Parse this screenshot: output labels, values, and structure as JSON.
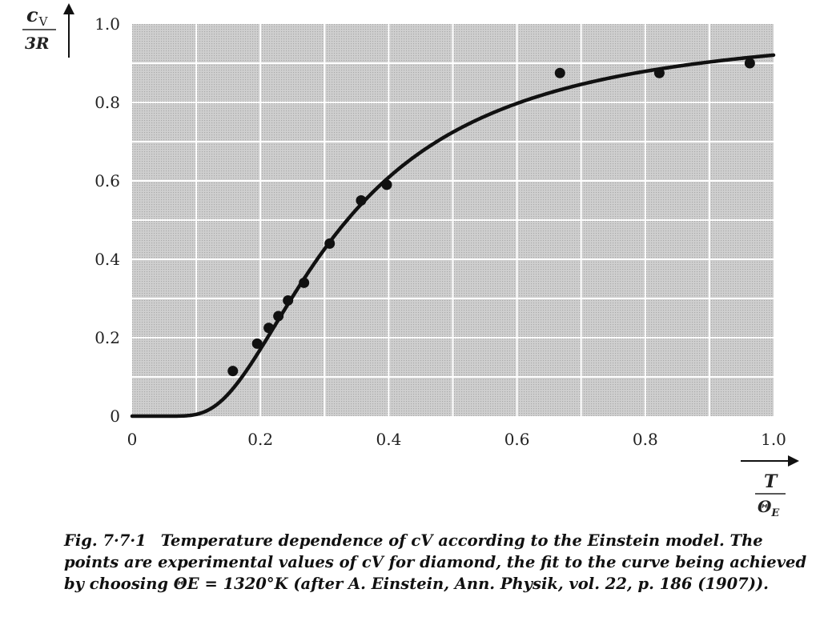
{
  "chart_data": {
    "type": "scatter",
    "x_ticks": [
      "0",
      "0.2",
      "0.4",
      "0.6",
      "0.8",
      "1.0"
    ],
    "y_ticks": [
      "0",
      "0.2",
      "0.4",
      "0.6",
      "0.8",
      "1.0"
    ],
    "xlim": [
      0,
      1.0
    ],
    "ylim": [
      0,
      1.0
    ],
    "grid": true,
    "ylabel": {
      "numerator": "c",
      "subscript": "V",
      "denominator": "3R"
    },
    "xlabel": {
      "numerator": "T",
      "denominator": "Θ",
      "subscript": "E"
    },
    "series": [
      {
        "type": "scatter",
        "x": [
          0.157,
          0.195,
          0.213,
          0.228,
          0.243,
          0.268,
          0.308,
          0.357,
          0.397,
          0.667,
          0.822,
          0.963
        ],
        "y": [
          0.115,
          0.185,
          0.225,
          0.255,
          0.295,
          0.34,
          0.44,
          0.55,
          0.59,
          0.875,
          0.875,
          0.9
        ]
      },
      {
        "type": "line",
        "model": "einstein"
      }
    ]
  },
  "caption": {
    "figure_number": "Fig. 7·7·1",
    "text": "Temperature dependence of cV according to the Einstein model. The points are experimental values of cV for diamond, the fit to the curve being achieved by choosing ΘE = 1320°K (after A. Einstein, Ann. Physik, vol. 22, p. 186 (1907))."
  }
}
